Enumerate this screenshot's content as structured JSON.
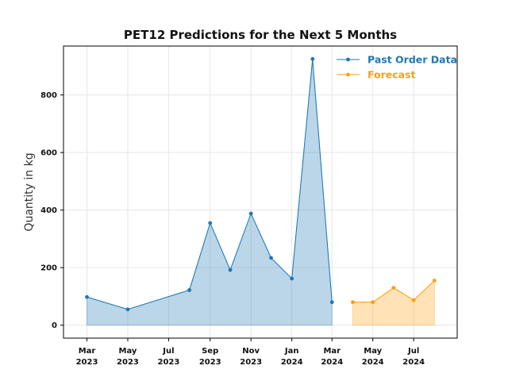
{
  "chart_data": {
    "type": "area",
    "title": "PET12 Predictions for the Next 5 Months",
    "xlabel": "",
    "ylabel": "Quantity in kg",
    "ylim": [
      -45,
      970
    ],
    "yticks": [
      0,
      200,
      400,
      600,
      800
    ],
    "xticks": [
      {
        "date": "2023-03",
        "label": [
          "Mar",
          "2023"
        ]
      },
      {
        "date": "2023-05",
        "label": [
          "May",
          "2023"
        ]
      },
      {
        "date": "2023-07",
        "label": [
          "Jul",
          "2023"
        ]
      },
      {
        "date": "2023-09",
        "label": [
          "Sep",
          "2023"
        ]
      },
      {
        "date": "2023-11",
        "label": [
          "Nov",
          "2023"
        ]
      },
      {
        "date": "2024-01",
        "label": [
          "Jan",
          "2024"
        ]
      },
      {
        "date": "2024-03",
        "label": [
          "Mar",
          "2024"
        ]
      },
      {
        "date": "2024-05",
        "label": [
          "May",
          "2024"
        ]
      },
      {
        "date": "2024-07",
        "label": [
          "Jul",
          "2024"
        ]
      }
    ],
    "grid": true,
    "legend_position": "top-right",
    "series": [
      {
        "name": "Past Order Data",
        "color": "#1f77b4",
        "x": [
          "2023-03-01",
          "2023-05-01",
          "2023-08-01",
          "2023-09-01",
          "2023-10-01",
          "2023-11-01",
          "2023-12-01",
          "2024-01-01",
          "2024-02-01",
          "2024-03-01"
        ],
        "y": [
          98,
          55,
          122,
          355,
          192,
          388,
          234,
          162,
          925,
          80
        ]
      },
      {
        "name": "Forecast",
        "color": "#ff9f0e",
        "x": [
          "2024-04-01",
          "2024-05-01",
          "2024-06-01",
          "2024-07-01",
          "2024-08-01"
        ],
        "y": [
          80,
          80,
          130,
          87,
          155
        ]
      }
    ]
  }
}
